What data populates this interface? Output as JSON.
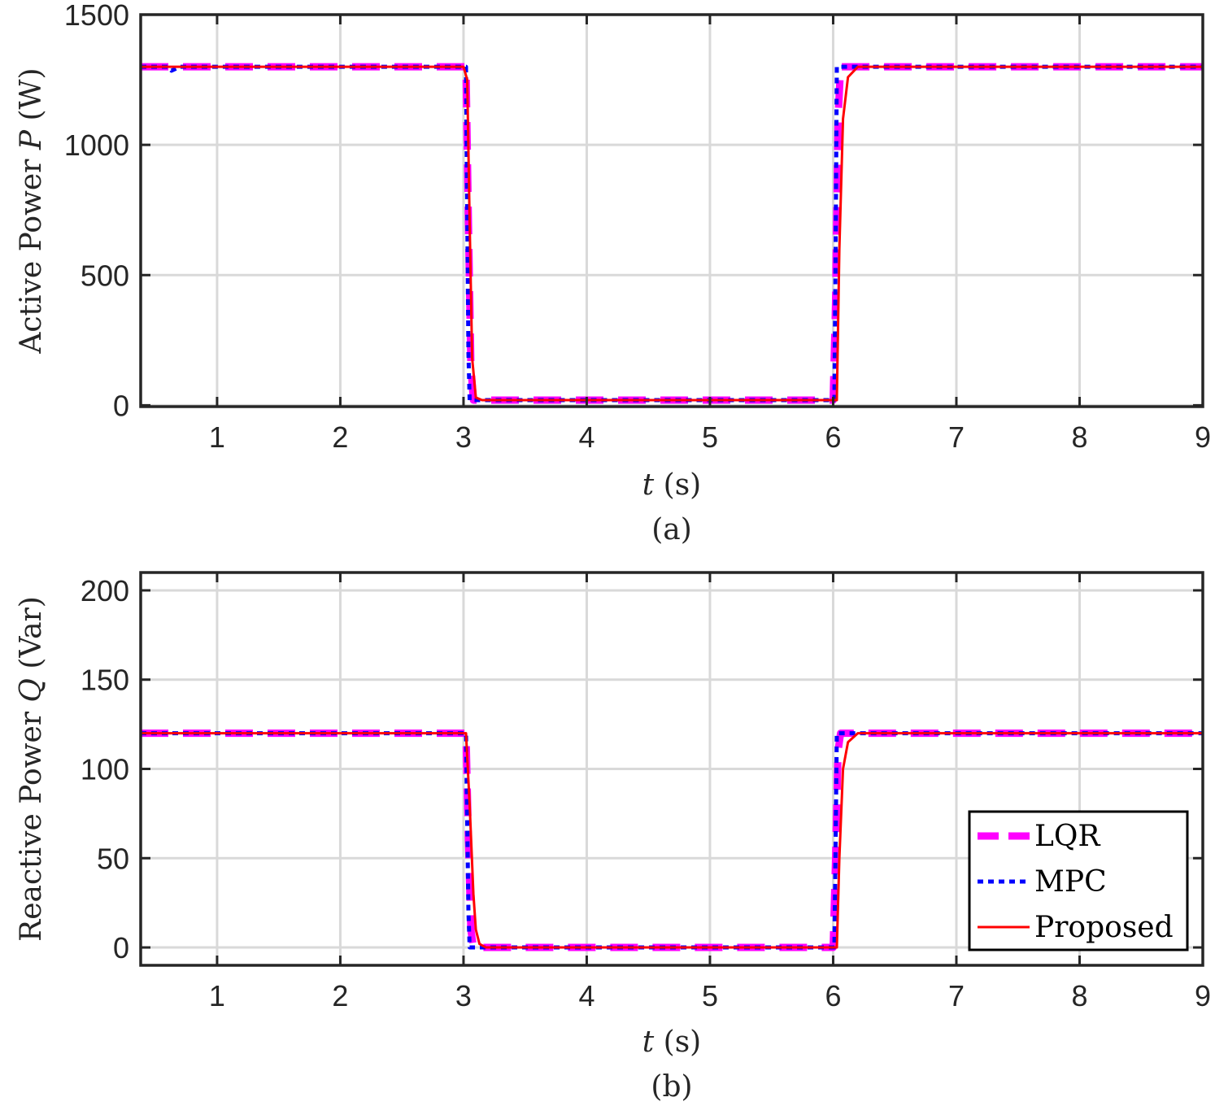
{
  "chart_data": [
    {
      "type": "line",
      "xlabel": {
        "var": "t",
        "unit": " (s)"
      },
      "ylabel": {
        "pre": "Active Power ",
        "var": "P",
        "unit": " (W)"
      },
      "caption": "(a)",
      "xlim": [
        0.38,
        9
      ],
      "ylim": [
        -5,
        1500
      ],
      "xticks": [
        1,
        2,
        3,
        4,
        5,
        6,
        7,
        8,
        9
      ],
      "yticks": [
        0,
        500,
        1000,
        1500
      ],
      "grid": true,
      "legend": null,
      "series": [
        {
          "name": "LQR",
          "color": "#ff00ff",
          "style": "dashed",
          "x": [
            0.38,
            3.02,
            3.04,
            3.06,
            3.08,
            6.0,
            6.02,
            6.04,
            6.06,
            9.0
          ],
          "y": [
            1300,
            1300,
            700,
            150,
            20,
            20,
            400,
            1100,
            1300,
            1300
          ]
        },
        {
          "name": "MPC",
          "color": "#0000ff",
          "style": "dotted",
          "x": [
            0.38,
            0.6,
            0.63,
            0.7,
            3.02,
            3.04,
            3.05,
            3.07,
            6.01,
            6.02,
            6.03,
            9.0
          ],
          "y": [
            1300,
            1300,
            1285,
            1300,
            1300,
            200,
            20,
            20,
            20,
            600,
            1300,
            1300
          ]
        },
        {
          "name": "Proposed",
          "color": "#ff0000",
          "style": "solid",
          "x": [
            0.38,
            3.0,
            3.03,
            3.05,
            3.07,
            3.1,
            3.15,
            6.03,
            6.05,
            6.08,
            6.12,
            6.2,
            9.0
          ],
          "y": [
            1300,
            1300,
            1250,
            700,
            180,
            30,
            20,
            20,
            600,
            1100,
            1260,
            1300,
            1300
          ]
        }
      ]
    },
    {
      "type": "line",
      "xlabel": {
        "var": "t",
        "unit": " (s)"
      },
      "ylabel": {
        "pre": "Reactive Power ",
        "var": "Q",
        "unit": " (Var)"
      },
      "caption": "(b)",
      "xlim": [
        0.38,
        9
      ],
      "ylim": [
        -10,
        210
      ],
      "xticks": [
        1,
        2,
        3,
        4,
        5,
        6,
        7,
        8,
        9
      ],
      "yticks": [
        0,
        50,
        100,
        150,
        200
      ],
      "grid": true,
      "legend": "bottom-right",
      "series": [
        {
          "name": "LQR",
          "color": "#ff00ff",
          "style": "dashed",
          "x": [
            0.38,
            3.02,
            3.04,
            3.06,
            3.08,
            6.0,
            6.02,
            6.04,
            6.06,
            9.0
          ],
          "y": [
            120,
            120,
            60,
            10,
            0,
            0,
            50,
            110,
            120,
            120
          ]
        },
        {
          "name": "MPC",
          "color": "#0000ff",
          "style": "dotted",
          "x": [
            0.38,
            3.02,
            3.04,
            3.05,
            3.07,
            6.01,
            6.02,
            6.03,
            9.0
          ],
          "y": [
            120,
            120,
            20,
            0,
            0,
            0,
            60,
            120,
            120
          ]
        },
        {
          "name": "Proposed",
          "color": "#ff0000",
          "style": "solid",
          "x": [
            0.38,
            3.02,
            3.05,
            3.08,
            3.1,
            3.13,
            3.18,
            6.03,
            6.05,
            6.08,
            6.12,
            6.2,
            9.0
          ],
          "y": [
            120,
            120,
            80,
            30,
            10,
            2,
            0,
            0,
            50,
            100,
            115,
            120,
            120
          ]
        }
      ]
    }
  ]
}
